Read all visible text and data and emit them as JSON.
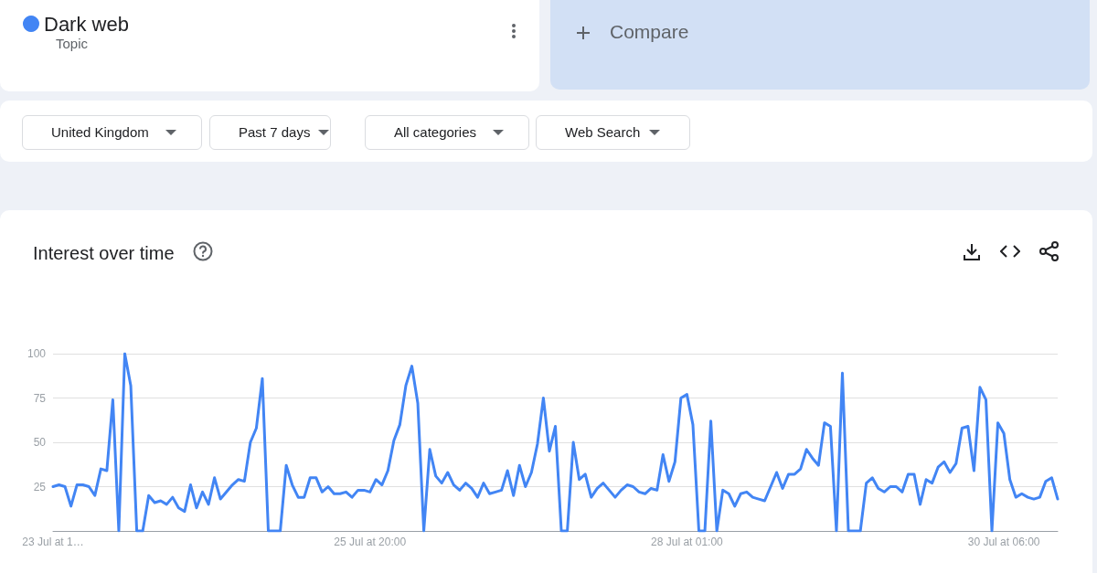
{
  "chart_data": {
    "type": "line",
    "title": "Interest over time",
    "annotations": [
      "Topic",
      "Compare",
      "United Kingdom",
      "Past 7 days",
      "All categories",
      "Web Search"
    ],
    "categories": [
      "23 Jul at 1…",
      null,
      null,
      null,
      null,
      null,
      null,
      null,
      null,
      null,
      null,
      null,
      null,
      null,
      null,
      null,
      null,
      null,
      null,
      null,
      null,
      null,
      null,
      null,
      null,
      null,
      null,
      null,
      null,
      null,
      null,
      null,
      null,
      null,
      null,
      null,
      null,
      null,
      null,
      null,
      null,
      null,
      null,
      null,
      null,
      null,
      null,
      null,
      null,
      null,
      null,
      null,
      null,
      "25 Jul at 20:00",
      null,
      null,
      null,
      null,
      null,
      null,
      null,
      null,
      null,
      null,
      null,
      null,
      null,
      null,
      null,
      null,
      null,
      null,
      null,
      null,
      null,
      null,
      null,
      null,
      null,
      null,
      null,
      null,
      null,
      null,
      null,
      null,
      null,
      null,
      null,
      null,
      null,
      null,
      null,
      null,
      null,
      null,
      null,
      null,
      null,
      null,
      null,
      null,
      null,
      null,
      null,
      null,
      "28 Jul at 01:00",
      null,
      null,
      null,
      null,
      null,
      null,
      null,
      null,
      null,
      null,
      null,
      null,
      null,
      null,
      null,
      null,
      null,
      null,
      null,
      null,
      null,
      null,
      null,
      null,
      null,
      null,
      null,
      null,
      null,
      null,
      null,
      null,
      null,
      null,
      null,
      null,
      null,
      null,
      null,
      null,
      null,
      null,
      null,
      null,
      null,
      null,
      null,
      null,
      null,
      null,
      null,
      null,
      "30 Jul at 06:00",
      null,
      null,
      null,
      null,
      null,
      null,
      null,
      null,
      null
    ],
    "series": [
      {
        "name": "Dark web",
        "color": "#4285f4",
        "values": [
          25,
          26,
          25,
          14,
          26,
          26,
          25,
          20,
          35,
          34,
          74,
          0,
          100,
          82,
          0,
          0,
          20,
          16,
          17,
          15,
          19,
          13,
          11,
          26,
          13,
          22,
          15,
          30,
          18,
          22,
          26,
          29,
          28,
          50,
          58,
          86,
          0,
          0,
          0,
          37,
          26,
          19,
          19,
          30,
          30,
          22,
          25,
          21,
          21,
          22,
          19,
          23,
          23,
          22,
          29,
          26,
          34,
          51,
          60,
          82,
          93,
          72,
          0,
          46,
          31,
          27,
          33,
          26,
          23,
          27,
          24,
          19,
          27,
          21,
          22,
          23,
          34,
          20,
          37,
          25,
          33,
          49,
          75,
          45,
          59,
          0,
          0,
          50,
          29,
          32,
          19,
          24,
          27,
          23,
          19,
          23,
          26,
          25,
          22,
          21,
          24,
          23,
          43,
          28,
          39,
          75,
          77,
          60,
          0,
          0,
          62,
          0,
          23,
          21,
          14,
          21,
          22,
          19,
          18,
          17,
          25,
          33,
          24,
          32,
          32,
          35,
          46,
          41,
          37,
          61,
          59,
          0,
          89,
          0,
          0,
          0,
          27,
          30,
          24,
          22,
          25,
          25,
          22,
          32,
          32,
          15,
          29,
          27,
          36,
          39,
          33,
          38,
          58,
          59,
          34,
          81,
          74,
          0,
          61,
          55,
          29,
          19,
          21,
          19,
          18,
          19,
          28,
          30,
          18
        ]
      }
    ],
    "ylim": [
      0,
      100
    ],
    "yticks": [
      25,
      50,
      75,
      100
    ],
    "grid": "y",
    "legend": "top left",
    "marker": "none",
    "line_style": "solid"
  }
}
